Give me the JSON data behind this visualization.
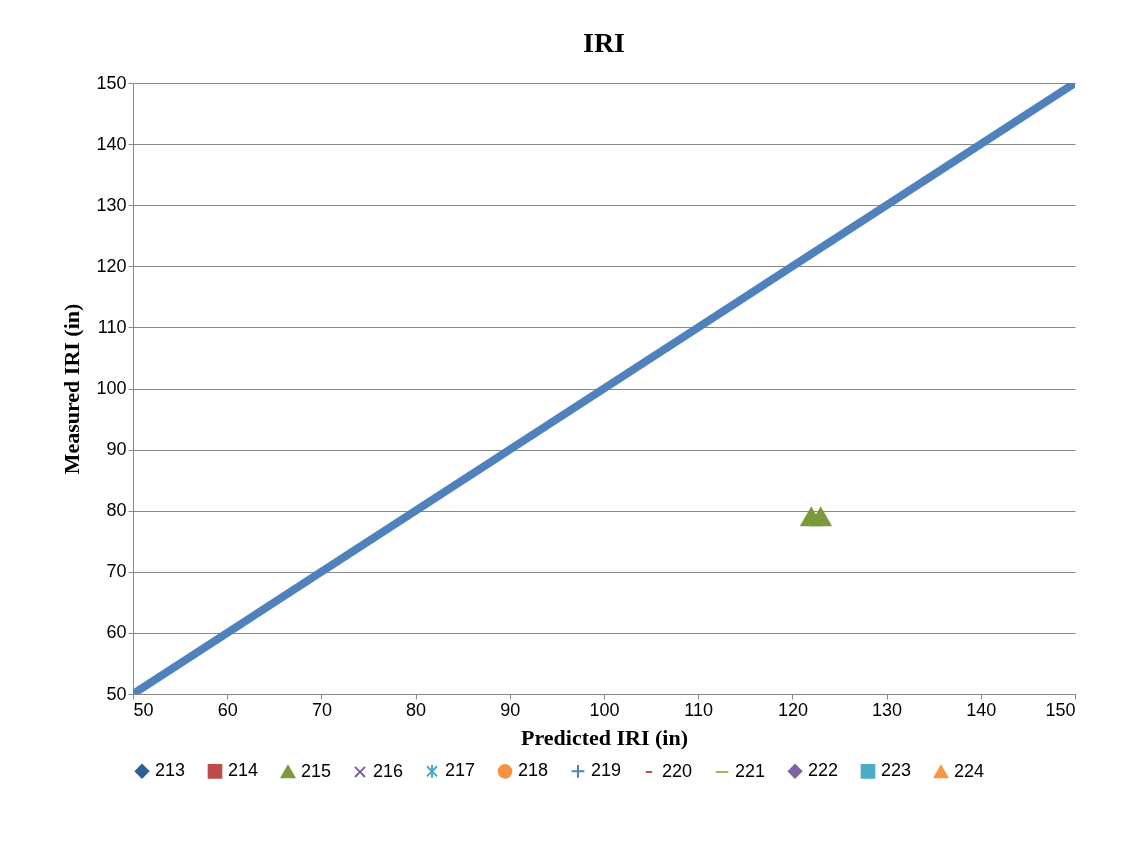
{
  "chart_data": {
    "type": "scatter",
    "title": "IRI",
    "xlabel": "Predicted IRI (in)",
    "ylabel": "Measured IRI (in)",
    "xlim": [
      50,
      150
    ],
    "xticks": [
      50,
      60,
      70,
      80,
      90,
      100,
      110,
      120,
      130,
      140,
      150
    ],
    "ylim": [
      50,
      150
    ],
    "yticks": [
      50,
      60,
      70,
      80,
      90,
      100,
      110,
      120,
      130,
      140,
      150
    ],
    "grid": "y",
    "legend": "bottom",
    "series": [
      {
        "type": "line",
        "color": "#4f81bd",
        "x": [
          50,
          150
        ],
        "values": [
          50,
          150
        ]
      },
      {
        "name": "213",
        "color": "#2f5f98",
        "marker": "diamond"
      },
      {
        "name": "214",
        "color": "#be4b48",
        "marker": "square"
      },
      {
        "name": "215",
        "color": "#7a9a3c",
        "marker": "triangle",
        "x": [
          122,
          123
        ],
        "values": [
          79,
          79
        ]
      },
      {
        "name": "216",
        "color": "#7d60a0",
        "marker": "x"
      },
      {
        "name": "217",
        "color": "#46aac5",
        "marker": "star"
      },
      {
        "name": "218",
        "color": "#f69240",
        "marker": "circle"
      },
      {
        "name": "219",
        "color": "#4f81bd",
        "marker": "plus"
      },
      {
        "name": "220",
        "color": "#c0504d",
        "marker": "dash"
      },
      {
        "name": "221",
        "color": "#9bbb59",
        "marker": "longdash"
      },
      {
        "name": "222",
        "color": "#8064a2",
        "marker": "diamond"
      },
      {
        "name": "223",
        "color": "#4bacc6",
        "marker": "square"
      },
      {
        "name": "224",
        "color": "#f79646",
        "marker": "triangle"
      }
    ]
  }
}
